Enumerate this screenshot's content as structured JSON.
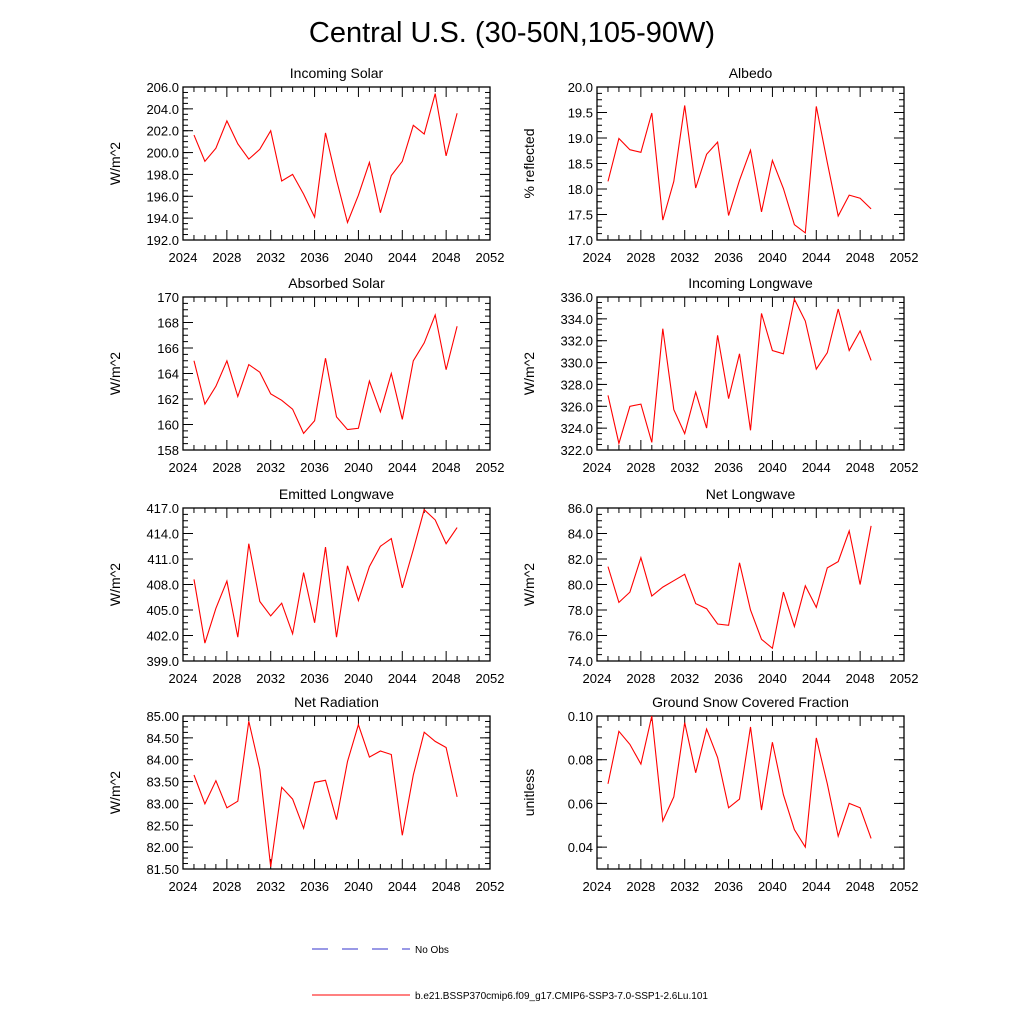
{
  "figure": {
    "title": "Central U.S. (30-50N,105-90W)",
    "legend": [
      {
        "label": "No Obs",
        "style": "dashed",
        "color": "#3333cc"
      },
      {
        "label": "b.e21.BSSP370cmip6.f09_g17.CMIP6-SSP3-7.0-SSP1-2.6Lu.101",
        "style": "solid",
        "color": "#ff0000"
      }
    ]
  },
  "chart_data": [
    {
      "type": "line",
      "title": "Incoming Solar",
      "ylabel": "W/m^2",
      "xlim": [
        2024,
        2052
      ],
      "ylim": [
        192,
        206
      ],
      "xticks": [
        2024,
        2028,
        2032,
        2036,
        2040,
        2044,
        2048,
        2052
      ],
      "xtick_labels": [
        "2024",
        "2028",
        "2032",
        "2036",
        "2040",
        "2044",
        "2048",
        "2052"
      ],
      "yticks": [
        192,
        194,
        196,
        198,
        200,
        202,
        204,
        206
      ],
      "ytick_labels": [
        "192.0",
        "194.0",
        "196.0",
        "198.0",
        "200.0",
        "202.0",
        "204.0",
        "206.0"
      ],
      "series": [
        {
          "color": "#ff0000",
          "x": [
            2025,
            2026,
            2027,
            2028,
            2029,
            2030,
            2031,
            2032,
            2033,
            2034,
            2035,
            2036,
            2037,
            2038,
            2039,
            2040,
            2041,
            2042,
            2043,
            2044,
            2045,
            2046,
            2047,
            2048,
            2049
          ],
          "y": [
            201.6,
            199.2,
            200.4,
            202.9,
            200.8,
            199.4,
            200.3,
            202.0,
            197.4,
            198.0,
            196.2,
            194.1,
            201.8,
            197.5,
            193.6,
            196.1,
            199.1,
            194.5,
            197.9,
            199.2,
            202.5,
            201.7,
            205.4,
            199.7,
            203.6
          ]
        }
      ]
    },
    {
      "type": "line",
      "title": "Albedo",
      "ylabel": "% reflected",
      "xlim": [
        2024,
        2052
      ],
      "ylim": [
        17,
        20
      ],
      "xticks": [
        2024,
        2028,
        2032,
        2036,
        2040,
        2044,
        2048,
        2052
      ],
      "xtick_labels": [
        "2024",
        "2028",
        "2032",
        "2036",
        "2040",
        "2044",
        "2048",
        "2052"
      ],
      "yticks": [
        17,
        17.5,
        18,
        18.5,
        19,
        19.5,
        20
      ],
      "ytick_labels": [
        "17.0",
        "17.5",
        "18.0",
        "18.5",
        "19.0",
        "19.5",
        "20.0"
      ],
      "series": [
        {
          "color": "#ff0000",
          "x": [
            2025,
            2026,
            2027,
            2028,
            2029,
            2030,
            2031,
            2032,
            2033,
            2034,
            2035,
            2036,
            2037,
            2038,
            2039,
            2040,
            2041,
            2042,
            2043,
            2044,
            2045,
            2046,
            2047,
            2048,
            2049
          ],
          "y": [
            18.15,
            18.99,
            18.77,
            18.72,
            19.49,
            17.39,
            18.15,
            19.64,
            18.02,
            18.68,
            18.92,
            17.48,
            18.17,
            18.76,
            17.55,
            18.56,
            18.01,
            17.3,
            17.14,
            19.62,
            18.52,
            17.47,
            17.88,
            17.82,
            17.61
          ]
        }
      ]
    },
    {
      "type": "line",
      "title": "Absorbed Solar",
      "ylabel": "W/m^2",
      "xlim": [
        2024,
        2052
      ],
      "ylim": [
        158,
        170
      ],
      "xticks": [
        2024,
        2028,
        2032,
        2036,
        2040,
        2044,
        2048,
        2052
      ],
      "xtick_labels": [
        "2024",
        "2028",
        "2032",
        "2036",
        "2040",
        "2044",
        "2048",
        "2052"
      ],
      "yticks": [
        158,
        160,
        162,
        164,
        166,
        168,
        170
      ],
      "ytick_labels": [
        "158",
        "160",
        "162",
        "164",
        "166",
        "168",
        "170"
      ],
      "series": [
        {
          "color": "#ff0000",
          "x": [
            2025,
            2026,
            2027,
            2028,
            2029,
            2030,
            2031,
            2032,
            2033,
            2034,
            2035,
            2036,
            2037,
            2038,
            2039,
            2040,
            2041,
            2042,
            2043,
            2044,
            2045,
            2046,
            2047,
            2048,
            2049
          ],
          "y": [
            165.0,
            161.6,
            163.0,
            165.0,
            162.2,
            164.7,
            164.1,
            162.4,
            161.9,
            161.2,
            159.3,
            160.3,
            165.2,
            160.6,
            159.6,
            159.7,
            163.4,
            161.0,
            164.0,
            160.4,
            165.0,
            166.4,
            168.6,
            164.3,
            167.7
          ]
        }
      ]
    },
    {
      "type": "line",
      "title": "Incoming Longwave",
      "ylabel": "W/m^2",
      "xlim": [
        2024,
        2052
      ],
      "ylim": [
        322,
        336
      ],
      "xticks": [
        2024,
        2028,
        2032,
        2036,
        2040,
        2044,
        2048,
        2052
      ],
      "xtick_labels": [
        "2024",
        "2028",
        "2032",
        "2036",
        "2040",
        "2044",
        "2048",
        "2052"
      ],
      "yticks": [
        322,
        324,
        326,
        328,
        330,
        332,
        334,
        336
      ],
      "ytick_labels": [
        "322.0",
        "324.0",
        "326.0",
        "328.0",
        "330.0",
        "332.0",
        "334.0",
        "336.0"
      ],
      "series": [
        {
          "color": "#ff0000",
          "x": [
            2025,
            2026,
            2027,
            2028,
            2029,
            2030,
            2031,
            2032,
            2033,
            2034,
            2035,
            2036,
            2037,
            2038,
            2039,
            2040,
            2041,
            2042,
            2043,
            2044,
            2045,
            2046,
            2047,
            2048,
            2049
          ],
          "y": [
            327.0,
            322.6,
            326.0,
            326.2,
            322.7,
            333.1,
            325.7,
            323.5,
            327.3,
            324.0,
            332.5,
            326.7,
            330.8,
            323.8,
            334.5,
            331.1,
            330.8,
            335.8,
            333.8,
            329.4,
            330.9,
            334.9,
            331.1,
            332.9,
            330.2
          ]
        }
      ]
    },
    {
      "type": "line",
      "title": "Emitted Longwave",
      "ylabel": "W/m^2",
      "xlim": [
        2024,
        2052
      ],
      "ylim": [
        399,
        417
      ],
      "xticks": [
        2024,
        2028,
        2032,
        2036,
        2040,
        2044,
        2048,
        2052
      ],
      "xtick_labels": [
        "2024",
        "2028",
        "2032",
        "2036",
        "2040",
        "2044",
        "2048",
        "2052"
      ],
      "yticks": [
        399,
        402,
        405,
        408,
        411,
        414,
        417
      ],
      "ytick_labels": [
        "399.0",
        "402.0",
        "405.0",
        "408.0",
        "411.0",
        "414.0",
        "417.0"
      ],
      "series": [
        {
          "color": "#ff0000",
          "x": [
            2025,
            2026,
            2027,
            2028,
            2029,
            2030,
            2031,
            2032,
            2033,
            2034,
            2035,
            2036,
            2037,
            2038,
            2039,
            2040,
            2041,
            2042,
            2043,
            2044,
            2045,
            2046,
            2047,
            2048,
            2049
          ],
          "y": [
            408.6,
            401.1,
            405.2,
            408.4,
            401.8,
            412.8,
            406.0,
            404.3,
            405.8,
            402.2,
            409.4,
            403.5,
            412.4,
            401.8,
            410.2,
            406.1,
            410.1,
            412.5,
            413.4,
            407.6,
            412.1,
            416.8,
            415.6,
            412.8,
            414.7
          ]
        }
      ]
    },
    {
      "type": "line",
      "title": "Net Longwave",
      "ylabel": "W/m^2",
      "xlim": [
        2024,
        2052
      ],
      "ylim": [
        74,
        86
      ],
      "xticks": [
        2024,
        2028,
        2032,
        2036,
        2040,
        2044,
        2048,
        2052
      ],
      "xtick_labels": [
        "2024",
        "2028",
        "2032",
        "2036",
        "2040",
        "2044",
        "2048",
        "2052"
      ],
      "yticks": [
        74,
        76,
        78,
        80,
        82,
        84,
        86
      ],
      "ytick_labels": [
        "74.0",
        "76.0",
        "78.0",
        "80.0",
        "82.0",
        "84.0",
        "86.0"
      ],
      "series": [
        {
          "color": "#ff0000",
          "x": [
            2025,
            2026,
            2027,
            2028,
            2029,
            2030,
            2031,
            2032,
            2033,
            2034,
            2035,
            2036,
            2037,
            2038,
            2039,
            2040,
            2041,
            2042,
            2043,
            2044,
            2045,
            2046,
            2047,
            2048,
            2049
          ],
          "y": [
            81.4,
            78.6,
            79.4,
            82.1,
            79.1,
            79.8,
            80.3,
            80.8,
            78.5,
            78.1,
            76.9,
            76.8,
            81.7,
            78.0,
            75.7,
            75.0,
            79.4,
            76.7,
            79.9,
            78.2,
            81.3,
            81.8,
            84.2,
            80.0,
            84.6
          ]
        }
      ]
    },
    {
      "type": "line",
      "title": "Net Radiation",
      "ylabel": "W/m^2",
      "xlim": [
        2024,
        2052
      ],
      "ylim": [
        81.5,
        85
      ],
      "xticks": [
        2024,
        2028,
        2032,
        2036,
        2040,
        2044,
        2048,
        2052
      ],
      "xtick_labels": [
        "2024",
        "2028",
        "2032",
        "2036",
        "2040",
        "2044",
        "2048",
        "2052"
      ],
      "yticks": [
        81.5,
        82,
        82.5,
        83,
        83.5,
        84,
        84.5,
        85
      ],
      "ytick_labels": [
        "81.50",
        "82.00",
        "82.50",
        "83.00",
        "83.50",
        "84.00",
        "84.50",
        "85.00"
      ],
      "series": [
        {
          "color": "#ff0000",
          "x": [
            2025,
            2026,
            2027,
            2028,
            2029,
            2030,
            2031,
            2032,
            2033,
            2034,
            2035,
            2036,
            2037,
            2038,
            2039,
            2040,
            2041,
            2042,
            2043,
            2044,
            2045,
            2046,
            2047,
            2048,
            2049
          ],
          "y": [
            83.65,
            82.99,
            83.52,
            82.9,
            83.05,
            84.88,
            83.78,
            81.55,
            83.37,
            83.1,
            82.43,
            83.48,
            83.53,
            82.63,
            83.96,
            84.8,
            84.06,
            84.2,
            84.12,
            82.27,
            83.65,
            84.63,
            84.42,
            84.28,
            83.15
          ]
        }
      ]
    },
    {
      "type": "line",
      "title": "Ground Snow Covered Fraction",
      "ylabel": "unitless",
      "xlim": [
        2024,
        2052
      ],
      "ylim": [
        0.03,
        0.1
      ],
      "xticks": [
        2024,
        2028,
        2032,
        2036,
        2040,
        2044,
        2048,
        2052
      ],
      "xtick_labels": [
        "2024",
        "2028",
        "2032",
        "2036",
        "2040",
        "2044",
        "2048",
        "2052"
      ],
      "yticks": [
        0.04,
        0.06,
        0.08,
        0.1
      ],
      "ytick_labels": [
        "0.04",
        "0.06",
        "0.08",
        "0.10"
      ],
      "series": [
        {
          "color": "#ff0000",
          "x": [
            2025,
            2026,
            2027,
            2028,
            2029,
            2030,
            2031,
            2032,
            2033,
            2034,
            2035,
            2036,
            2037,
            2038,
            2039,
            2040,
            2041,
            2042,
            2043,
            2044,
            2045,
            2046,
            2047,
            2048,
            2049
          ],
          "y": [
            0.069,
            0.093,
            0.087,
            0.078,
            0.1,
            0.052,
            0.063,
            0.097,
            0.074,
            0.094,
            0.081,
            0.058,
            0.062,
            0.095,
            0.057,
            0.088,
            0.064,
            0.048,
            0.04,
            0.09,
            0.069,
            0.045,
            0.06,
            0.058,
            0.044
          ]
        }
      ]
    }
  ]
}
